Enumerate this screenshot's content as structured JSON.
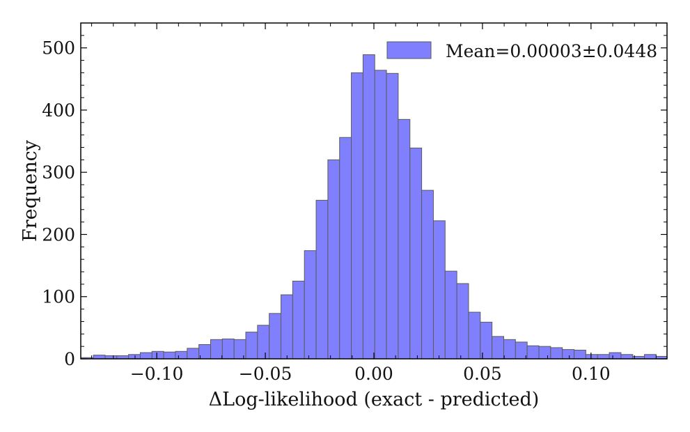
{
  "chart_data": {
    "type": "bar",
    "subtype": "histogram",
    "title": "",
    "xlabel": "ΔLog-likelihood (exact - predicted)",
    "ylabel": "Frequency",
    "xlim": [
      -0.135,
      0.135
    ],
    "ylim": [
      0,
      540
    ],
    "grid": false,
    "legend": {
      "placement": "top-right",
      "entries": [
        "Mean=0.00003±0.0448"
      ]
    },
    "colors": {
      "bar_fill": "#8080ff",
      "bar_edge": "#5a5a5a",
      "axis": "#000000"
    },
    "x_ticks": [
      {
        "value": -0.1,
        "label": "−0.10"
      },
      {
        "value": -0.05,
        "label": "−0.05"
      },
      {
        "value": 0.0,
        "label": "0.00"
      },
      {
        "value": 0.05,
        "label": "0.05"
      },
      {
        "value": 0.1,
        "label": "0.10"
      }
    ],
    "y_ticks": [
      {
        "value": 0,
        "label": "0"
      },
      {
        "value": 100,
        "label": "100"
      },
      {
        "value": 200,
        "label": "200"
      },
      {
        "value": 300,
        "label": "300"
      },
      {
        "value": 400,
        "label": "400"
      },
      {
        "value": 500,
        "label": "500"
      }
    ],
    "bin_edges": [
      -0.1346,
      -0.1292,
      -0.1238,
      -0.1184,
      -0.113,
      -0.1076,
      -0.1022,
      -0.0968,
      -0.0914,
      -0.086,
      -0.0806,
      -0.0752,
      -0.0698,
      -0.0644,
      -0.059,
      -0.0536,
      -0.0482,
      -0.0428,
      -0.0374,
      -0.032,
      -0.0266,
      -0.0212,
      -0.0158,
      -0.0104,
      -0.005,
      0.0004,
      0.0058,
      0.0112,
      0.0166,
      0.022,
      0.0274,
      0.0328,
      0.0382,
      0.0436,
      0.049,
      0.0544,
      0.0598,
      0.0652,
      0.0706,
      0.076,
      0.0814,
      0.0868,
      0.0922,
      0.0976,
      0.103,
      0.1084,
      0.1138,
      0.1192,
      0.1246,
      0.13,
      0.1354
    ],
    "values": [
      2,
      6,
      5,
      5,
      7,
      10,
      12,
      11,
      12,
      17,
      23,
      31,
      32,
      31,
      43,
      54,
      73,
      103,
      125,
      174,
      255,
      320,
      356,
      460,
      489,
      464,
      459,
      385,
      339,
      271,
      222,
      141,
      121,
      75,
      59,
      36,
      31,
      27,
      21,
      20,
      18,
      15,
      14,
      7,
      7,
      10,
      7,
      4,
      7,
      4
    ]
  }
}
